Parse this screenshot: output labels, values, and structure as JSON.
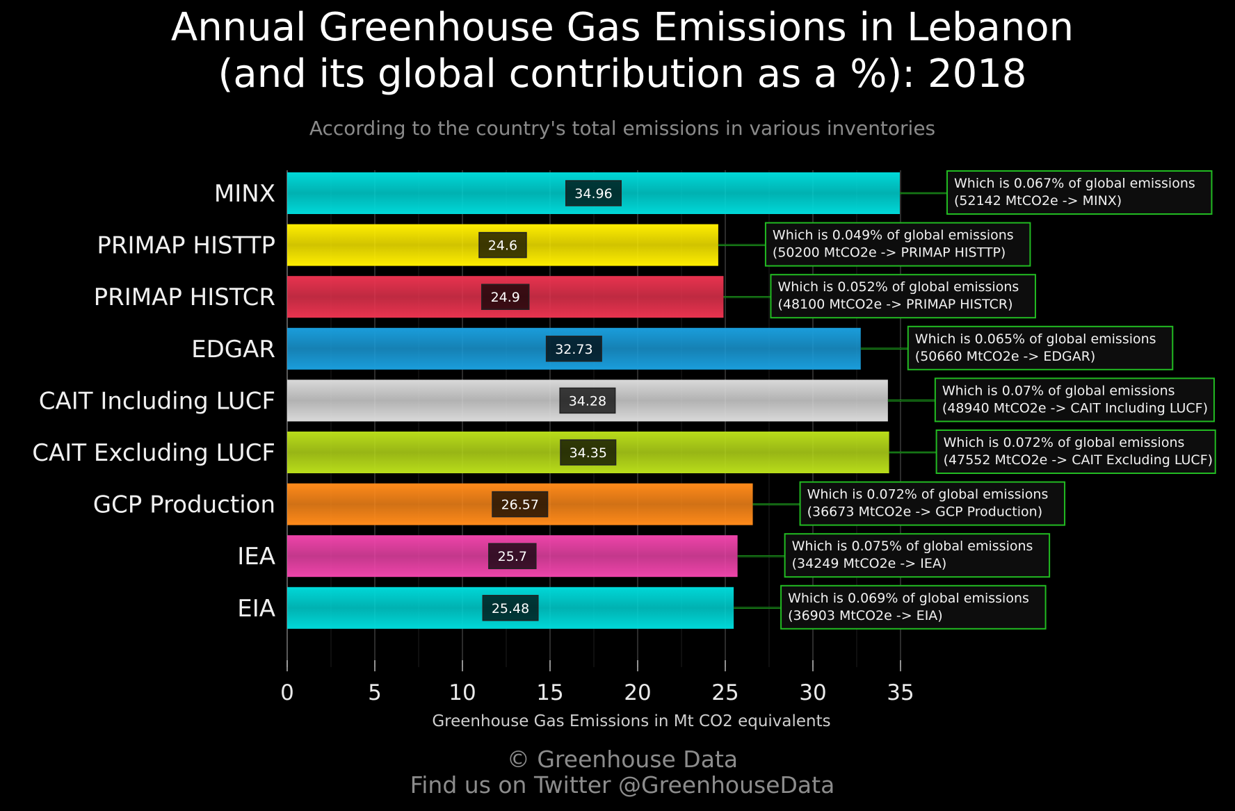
{
  "title_line1": "Annual Greenhouse Gas Emissions in Lebanon",
  "title_line2": "(and its global contribution as a %): 2018",
  "subtitle": "According to the country's total emissions in various inventories",
  "footer_line1": "© Greenhouse Data",
  "footer_line2": "Find us on Twitter @GreenhouseData",
  "chart_data": {
    "type": "bar",
    "orientation": "horizontal",
    "xlabel": "Greenhouse Gas Emissions in Mt CO2 equivalents",
    "xlim": [
      0,
      37
    ],
    "xticks": [
      0,
      5,
      10,
      15,
      20,
      25,
      30,
      35
    ],
    "grid": "vertical",
    "categories": [
      "MINX",
      "PRIMAP HISTTP",
      "PRIMAP HISTCR",
      "EDGAR",
      "CAIT Including LUCF",
      "CAIT Excluding LUCF",
      "GCP Production",
      "IEA",
      "EIA"
    ],
    "values": [
      34.96,
      24.6,
      24.9,
      32.73,
      34.28,
      34.35,
      26.57,
      25.7,
      25.48
    ],
    "value_labels": [
      "34.96",
      "24.6",
      "24.9",
      "32.73",
      "34.28",
      "34.35",
      "26.57",
      "25.7",
      "25.48"
    ],
    "colors": [
      "#00d8d8",
      "#ffee00",
      "#e8334f",
      "#1a9ddb",
      "#d9d9d9",
      "#b9dd1a",
      "#ff8a1a",
      "#ee44aa",
      "#00d8d8"
    ],
    "annotations": [
      {
        "line1": "Which is 0.067% of global emissions",
        "line2": "(52142 MtCO2e -> MINX)"
      },
      {
        "line1": "Which is 0.049% of global emissions",
        "line2": "(50200 MtCO2e -> PRIMAP HISTTP)"
      },
      {
        "line1": "Which is 0.052% of global emissions",
        "line2": "(48100 MtCO2e -> PRIMAP HISTCR)"
      },
      {
        "line1": "Which is 0.065% of global emissions",
        "line2": "(50660 MtCO2e -> EDGAR)"
      },
      {
        "line1": "Which is 0.07% of global emissions",
        "line2": "(48940 MtCO2e -> CAIT Including LUCF)"
      },
      {
        "line1": "Which is 0.072% of global emissions",
        "line2": "(47552 MtCO2e -> CAIT Excluding LUCF)"
      },
      {
        "line1": "Which is 0.072% of global emissions",
        "line2": "(36673 MtCO2e -> GCP Production)"
      },
      {
        "line1": "Which is 0.075% of global emissions",
        "line2": "(34249 MtCO2e -> IEA)"
      },
      {
        "line1": "Which is 0.069% of global emissions",
        "line2": "(36903 MtCO2e -> EIA)"
      }
    ],
    "annotation_border_color": "#22bb22"
  }
}
